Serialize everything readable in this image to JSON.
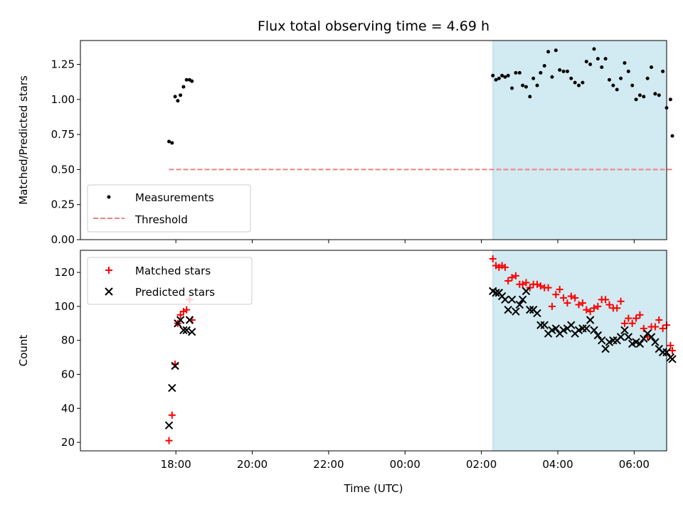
{
  "chart_data": {
    "title": "Flux total observing time = 4.69 h",
    "xlabel": "Time (UTC)",
    "x_tick_labels": [
      "18:00",
      "20:00",
      "22:00",
      "00:00",
      "02:00",
      "04:00",
      "06:00"
    ],
    "x_ticks_hours": [
      18,
      20,
      22,
      24,
      26,
      28,
      30
    ],
    "xlim_hours": [
      15.5,
      30.85
    ],
    "shaded_interval_hours": [
      26.3,
      31.0
    ],
    "shade_color": "#add8e6",
    "panels": [
      {
        "type": "scatter",
        "ylabel": "Matched/Predicted stars",
        "ylim": [
          0,
          1.42
        ],
        "y_ticks": [
          0.0,
          0.25,
          0.5,
          0.75,
          1.0,
          1.25
        ],
        "y_tick_labels": [
          "0.00",
          "0.25",
          "0.50",
          "0.75",
          "1.00",
          "1.25"
        ],
        "legend_position": "lower-left",
        "series": [
          {
            "name": "Measurements",
            "marker": "dot",
            "color": "#000000",
            "x": [
              17.82,
              17.9,
              17.98,
              18.05,
              18.12,
              18.2,
              18.28,
              18.36,
              18.42,
              26.3,
              26.38,
              26.46,
              26.54,
              26.62,
              26.7,
              26.8,
              26.9,
              27.0,
              27.08,
              27.17,
              27.27,
              27.36,
              27.46,
              27.55,
              27.65,
              27.75,
              27.85,
              27.95,
              28.05,
              28.15,
              28.25,
              28.35,
              28.45,
              28.55,
              28.65,
              28.75,
              28.85,
              28.95,
              29.05,
              29.15,
              29.25,
              29.35,
              29.45,
              29.55,
              29.65,
              29.75,
              29.85,
              29.95,
              30.05,
              30.15,
              30.25,
              30.35,
              30.45,
              30.55,
              30.65,
              30.75,
              30.85,
              30.95,
              31.0
            ],
            "y": [
              0.7,
              0.69,
              1.02,
              0.99,
              1.03,
              1.09,
              1.14,
              1.14,
              1.13,
              1.17,
              1.14,
              1.15,
              1.17,
              1.16,
              1.17,
              1.08,
              1.19,
              1.19,
              1.1,
              1.09,
              1.02,
              1.15,
              1.1,
              1.19,
              1.24,
              1.34,
              1.16,
              1.35,
              1.21,
              1.2,
              1.2,
              1.15,
              1.12,
              1.1,
              1.12,
              1.27,
              1.25,
              1.36,
              1.29,
              1.23,
              1.29,
              1.14,
              1.1,
              1.07,
              1.15,
              1.26,
              1.2,
              1.1,
              1.0,
              1.03,
              1.02,
              1.15,
              1.23,
              1.04,
              1.03,
              1.2,
              0.94,
              1.0,
              0.74
            ]
          },
          {
            "name": "Threshold",
            "marker": "dashed-line",
            "color": "#f08080",
            "x": [
              17.82,
              31.0
            ],
            "y": [
              0.5,
              0.5
            ]
          }
        ]
      },
      {
        "type": "scatter",
        "ylabel": "Count",
        "ylim": [
          15,
          133
        ],
        "y_ticks": [
          20,
          40,
          60,
          80,
          100,
          120
        ],
        "y_tick_labels": [
          "20",
          "40",
          "60",
          "80",
          "100",
          "120"
        ],
        "legend_position": "top-left",
        "series": [
          {
            "name": "Matched stars",
            "marker": "plus",
            "color": "#ff0000",
            "x": [
              17.82,
              17.9,
              17.98,
              18.05,
              18.12,
              18.2,
              18.28,
              18.36,
              18.42,
              26.3,
              26.38,
              26.46,
              26.54,
              26.62,
              26.7,
              26.8,
              26.9,
              27.0,
              27.08,
              27.17,
              27.27,
              27.36,
              27.46,
              27.55,
              27.65,
              27.75,
              27.85,
              27.95,
              28.05,
              28.15,
              28.25,
              28.35,
              28.45,
              28.55,
              28.65,
              28.75,
              28.85,
              28.95,
              29.05,
              29.15,
              29.25,
              29.35,
              29.45,
              29.55,
              29.65,
              29.75,
              29.85,
              29.95,
              30.05,
              30.15,
              30.25,
              30.35,
              30.45,
              30.55,
              30.65,
              30.75,
              30.85,
              30.95,
              31.0
            ],
            "y": [
              21,
              36,
              66,
              90,
              95,
              97,
              98,
              104,
              92,
              128,
              124,
              123,
              124,
              123,
              115,
              117,
              118,
              113,
              113,
              114,
              111,
              113,
              113,
              112,
              111,
              111,
              100,
              107,
              110,
              105,
              102,
              106,
              105,
              101,
              102,
              98,
              97,
              99,
              100,
              104,
              104,
              101,
              99,
              99,
              103,
              90,
              93,
              90,
              93,
              95,
              87,
              82,
              88,
              88,
              92,
              87,
              89,
              77,
              74
            ]
          },
          {
            "name": "Predicted stars",
            "marker": "x",
            "color": "#000000",
            "x": [
              17.82,
              17.9,
              17.98,
              18.05,
              18.12,
              18.2,
              18.28,
              18.36,
              18.42,
              26.3,
              26.38,
              26.46,
              26.54,
              26.62,
              26.7,
              26.8,
              26.9,
              27.0,
              27.08,
              27.17,
              27.27,
              27.36,
              27.46,
              27.55,
              27.65,
              27.75,
              27.85,
              27.95,
              28.05,
              28.15,
              28.25,
              28.35,
              28.45,
              28.55,
              28.65,
              28.75,
              28.85,
              28.95,
              29.05,
              29.15,
              29.25,
              29.35,
              29.45,
              29.55,
              29.65,
              29.75,
              29.85,
              29.95,
              30.05,
              30.15,
              30.25,
              30.35,
              30.45,
              30.55,
              30.65,
              30.75,
              30.85,
              30.95,
              31.0
            ],
            "y": [
              30,
              52,
              65,
              90,
              92,
              86,
              86,
              92,
              85,
              109,
              108,
              108,
              106,
              104,
              98,
              104,
              97,
              101,
              104,
              109,
              98,
              98,
              96,
              89,
              89,
              84,
              86,
              87,
              84,
              86,
              87,
              89,
              84,
              86,
              87,
              87,
              92,
              86,
              83,
              80,
              75,
              79,
              80,
              80,
              82,
              86,
              82,
              78,
              79,
              78,
              81,
              84,
              82,
              79,
              75,
              73,
              73,
              70,
              69
            ]
          }
        ]
      }
    ]
  }
}
